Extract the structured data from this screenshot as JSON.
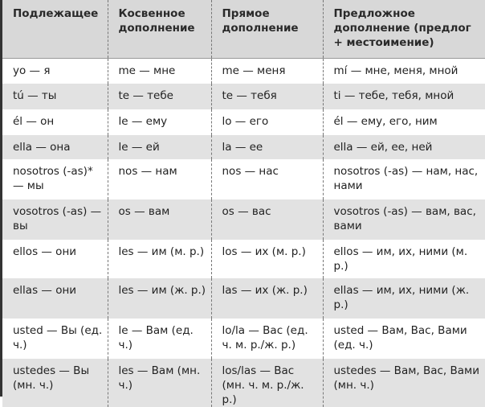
{
  "headers": [
    "Подлежащее",
    "Косвенное дополнение",
    "Прямое дополнение",
    "Предложное дополнение (предлог + местоимение)"
  ],
  "rows": [
    [
      "yo — я",
      "me — мне",
      "me — меня",
      "mí — мне, меня, мной"
    ],
    [
      "tú — ты",
      "te — тебе",
      "te — тебя",
      "ti — тебе, тебя, мной"
    ],
    [
      "él — он",
      "le — ему",
      "lo — его",
      "él — ему, его, ним"
    ],
    [
      "ella — она",
      "le — ей",
      "la — ее",
      "ella — ей, ее, ней"
    ],
    [
      "nosotros (-as)* — мы",
      "nos — нам",
      "nos — нас",
      "nosotros (-as) — нам, нас, нами"
    ],
    [
      "vosotros (-as) — вы",
      "os — вам",
      "os — вас",
      "vosotros (-as) — вам, вас, вами"
    ],
    [
      "ellos — они",
      "les — им (м. р.)",
      "los — их (м. р.)",
      "ellos — им, их, ними (м. р.)"
    ],
    [
      "ellas — они",
      "les — им (ж. р.)",
      "las — их (ж. р.)",
      "ellas — им, их, ними (ж. р.)"
    ],
    [
      "usted — Вы (ед. ч.)",
      "le — Вам (ед. ч.)",
      "lo/la — Вас (ед. ч. м. р./ж. р.)",
      "usted — Вам, Вас, Вами (ед. ч.)"
    ],
    [
      "ustedes — Вы (мн. ч.)",
      "les — Вам (мн. ч.)",
      "los/las — Вас (мн. ч. м. р./ж. р.)",
      "ustedes — Вам, Вас, Вами (мн. ч.)"
    ]
  ],
  "colors": {
    "header_bg": "#d8d8d8",
    "stripe_bg": "#e2e2e2"
  }
}
